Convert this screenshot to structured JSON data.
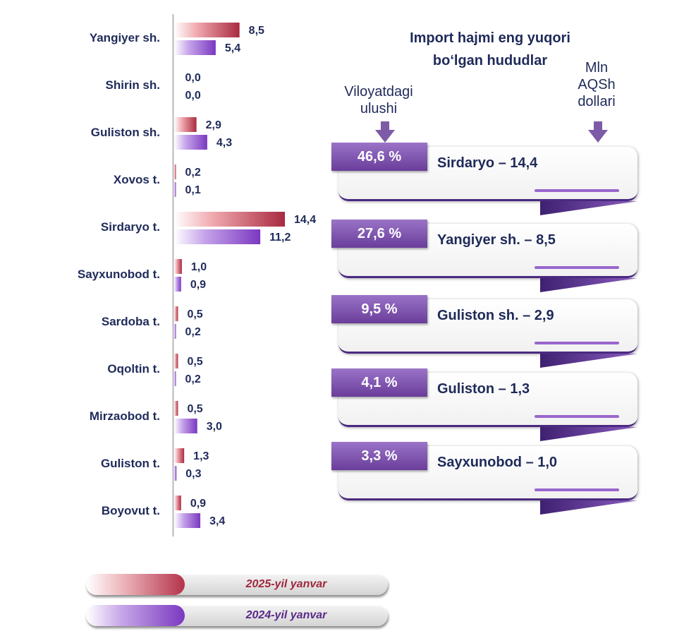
{
  "chart_data": {
    "type": "bar",
    "orientation": "horizontal",
    "categories": [
      "Yangiyer sh.",
      "Shirin sh.",
      "Guliston sh.",
      "Xovos t.",
      "Sirdaryo t.",
      "Sayxunobod t.",
      "Sardoba t.",
      "Oqoltin t.",
      "Mirzaobod t.",
      "Guliston t.",
      "Boyovut t."
    ],
    "series": [
      {
        "name": "2025-yil yanvar",
        "color": "#b4334a",
        "values": [
          8.5,
          0.0,
          2.9,
          0.2,
          14.4,
          1.0,
          0.5,
          0.5,
          0.5,
          1.3,
          0.9
        ],
        "labels": [
          "8,5",
          "0,0",
          "2,9",
          "0,2",
          "14,4",
          "1,0",
          "0,5",
          "0,5",
          "0,5",
          "1,3",
          "0,9"
        ]
      },
      {
        "name": "2024-yil yanvar",
        "color": "#7a38c0",
        "values": [
          5.4,
          0.0,
          4.3,
          0.1,
          11.2,
          0.9,
          0.2,
          0.2,
          3.0,
          0.3,
          3.4
        ],
        "labels": [
          "5,4",
          "0,0",
          "4,3",
          "0,1",
          "11,2",
          "0,9",
          "0,2",
          "0,2",
          "3,0",
          "0,3",
          "3,4"
        ]
      }
    ],
    "xlim": [
      0,
      14.4
    ],
    "grid": false,
    "legend_position": "bottom"
  },
  "ranking": {
    "title_line1": "Import hajmi eng yuqori",
    "title_line2": "bo‘lgan hududlar",
    "share_header_line1": "Viloyatdagi",
    "share_header_line2": "ulushi",
    "unit_header_line1": "Mln",
    "unit_header_line2": "AQSh",
    "unit_header_line3": "dollari",
    "items": [
      {
        "share": "46,6 %",
        "label": "Sirdaryo – 14,4"
      },
      {
        "share": "27,6 %",
        "label": "Yangiyer sh. – 8,5"
      },
      {
        "share": "9,5 %",
        "label": "Guliston sh. – 2,9"
      },
      {
        "share": "4,1 %",
        "label": "Guliston – 1,3"
      },
      {
        "share": "3,3 %",
        "label": "Sayxunobod – 1,0"
      }
    ]
  }
}
